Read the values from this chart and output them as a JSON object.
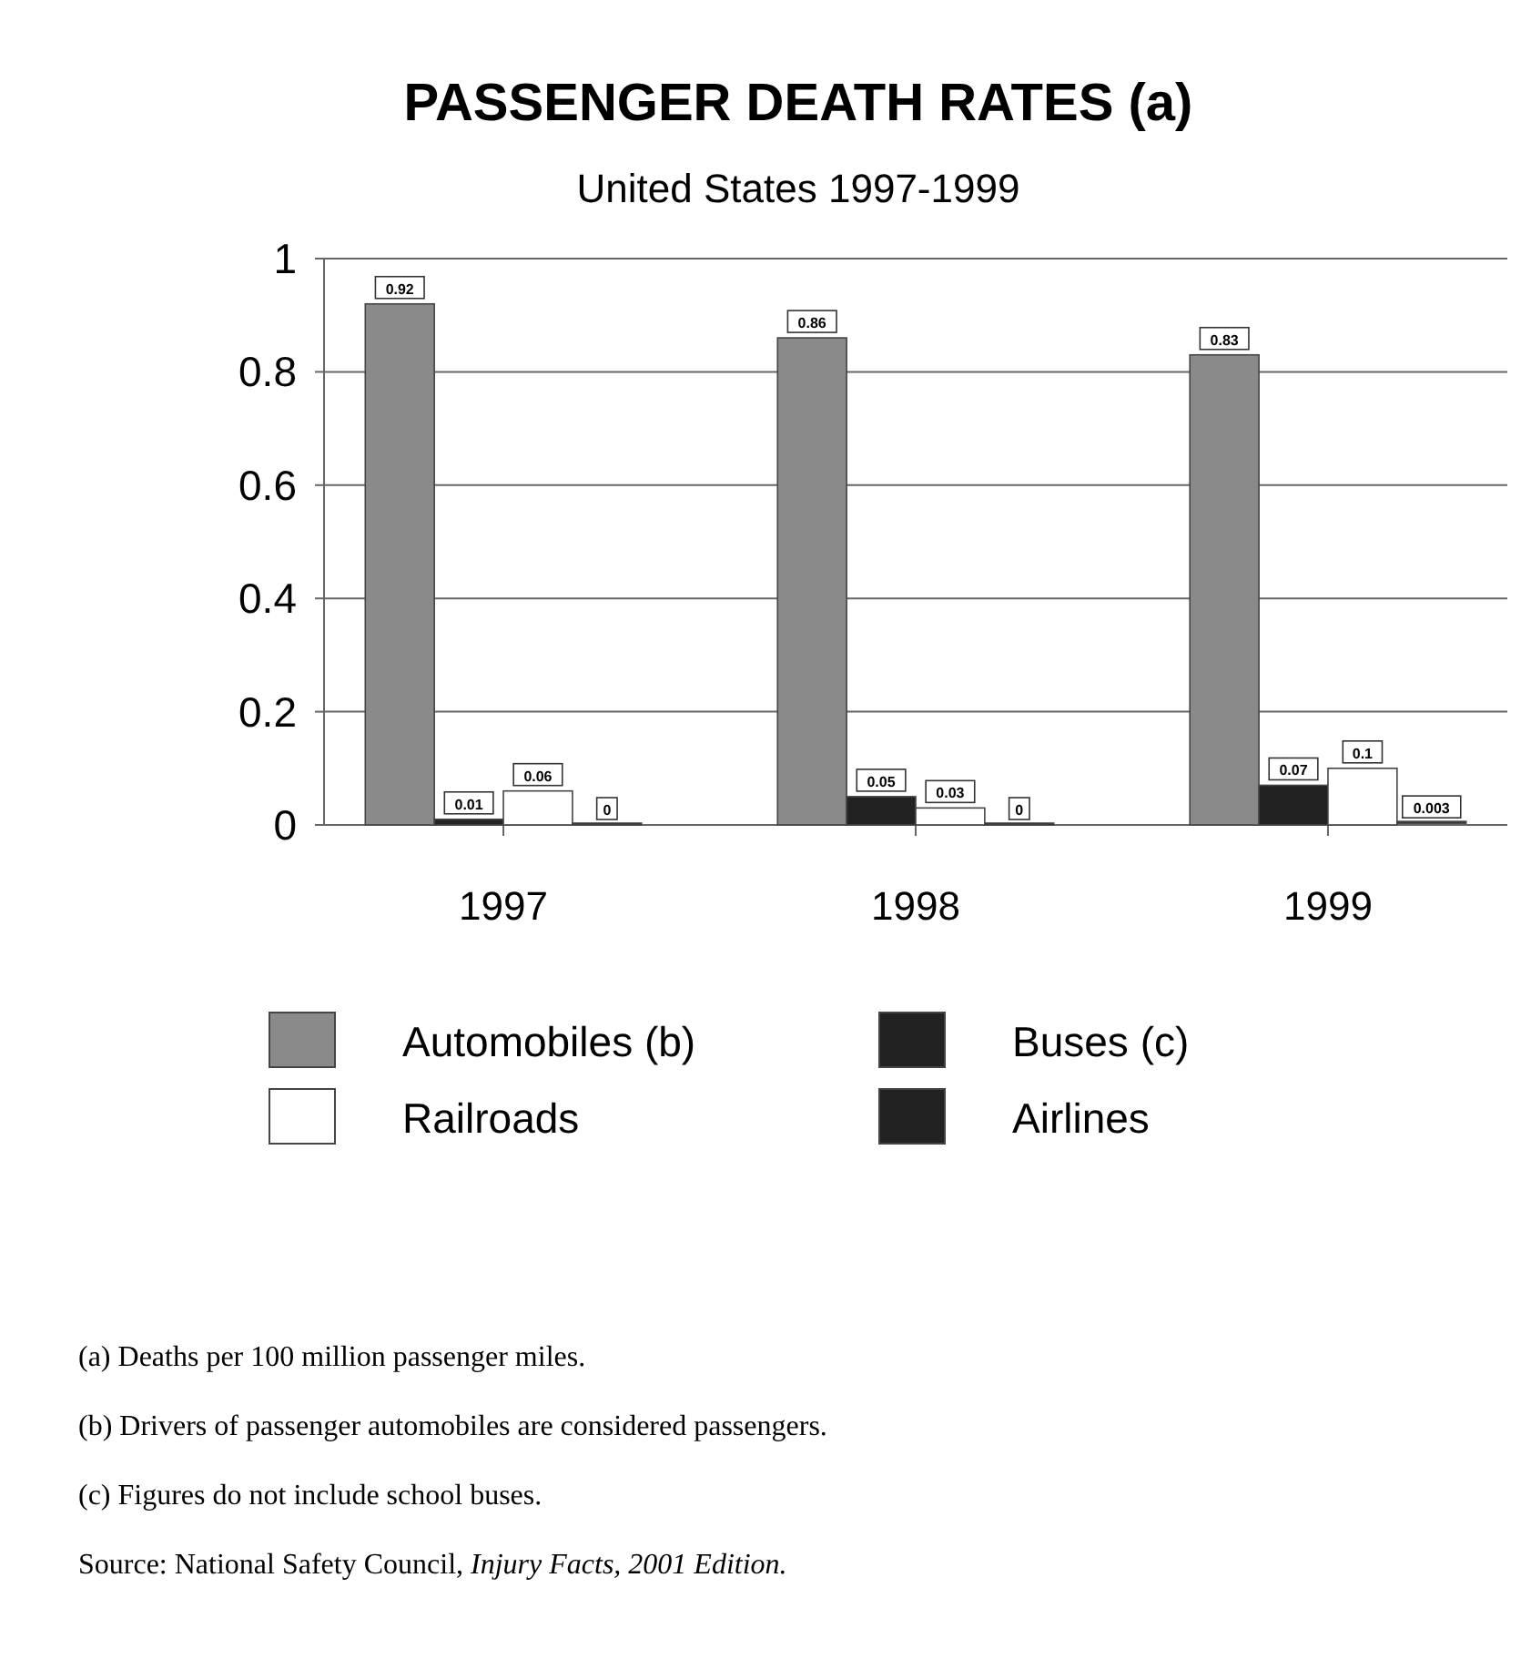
{
  "chart_data": {
    "type": "bar",
    "title": "PASSENGER DEATH RATES (a)",
    "subtitle": "United States 1997-1999",
    "categories": [
      "1997",
      "1998",
      "1999"
    ],
    "series": [
      {
        "name": "Automobiles (b)",
        "color": "#8a8a8a",
        "values": [
          0.92,
          0.86,
          0.83
        ]
      },
      {
        "name": "Buses (c)",
        "color": "#222222",
        "values": [
          0.01,
          0.05,
          0.07
        ]
      },
      {
        "name": "Railroads",
        "color": "#ffffff",
        "values": [
          0.06,
          0.03,
          0.1
        ]
      },
      {
        "name": "Airlines",
        "color": "#222222",
        "values": [
          0,
          0,
          0.003
        ]
      }
    ],
    "ylim": [
      0,
      1
    ],
    "yticks": [
      0,
      0.2,
      0.4,
      0.6,
      0.8,
      1
    ],
    "grid": "y",
    "legend": "bottom",
    "data_labels": true,
    "annotations": [
      "(a) Deaths per 100 million passenger miles.",
      "(b) Drivers of passenger automobiles are considered passengers.",
      "(c) Figures do not include school buses.",
      "Source:  National Safety Council, $_{}$Injury Facts, 2001 Edition."
    ]
  }
}
